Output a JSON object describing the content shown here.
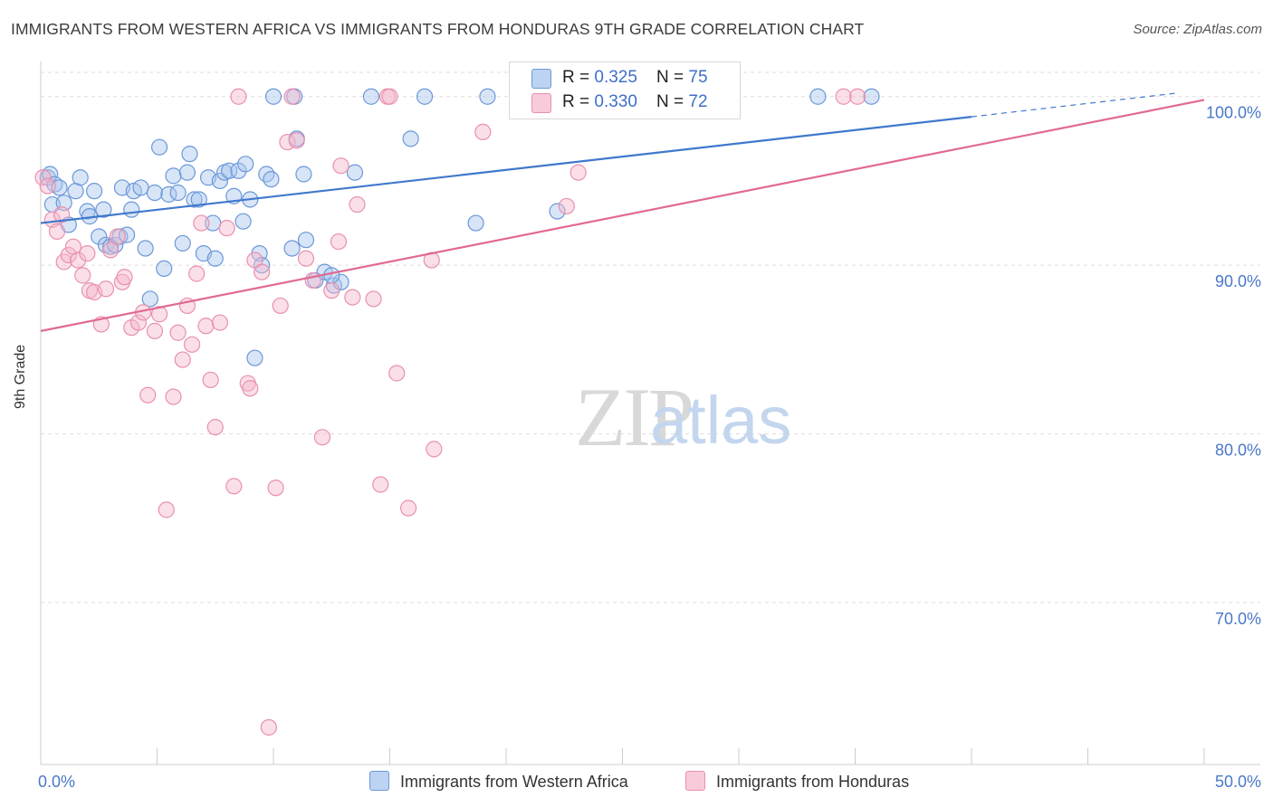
{
  "title": "IMMIGRANTS FROM WESTERN AFRICA VS IMMIGRANTS FROM HONDURAS 9TH GRADE CORRELATION CHART",
  "source": "Source: ZipAtlas.com",
  "watermark": {
    "zip": "ZIP",
    "atlas": "atlas"
  },
  "legend": {
    "r_label": "R = ",
    "n_label": "N = ",
    "series_a": {
      "r": "0.325",
      "n": "75"
    },
    "series_b": {
      "r": "0.330",
      "n": "72"
    }
  },
  "colors": {
    "blue_fill": "#a9c6ee",
    "blue_stroke": "#6b98d8",
    "blue_line": "#3f78cc",
    "pink_fill": "#f5b9cc",
    "pink_stroke": "#e990ae",
    "pink_line": "#e06a92",
    "axis_text": "#4a78c8",
    "grid": "#dddddd"
  },
  "chart_data": {
    "type": "scatter",
    "title": "IMMIGRANTS FROM WESTERN AFRICA VS IMMIGRANTS FROM HONDURAS 9TH GRADE CORRELATION CHART",
    "xlabel": "",
    "ylabel": "9th Grade",
    "xlim": [
      0,
      50
    ],
    "ylim": [
      60.4,
      102.4
    ],
    "x_tick_labels": [
      "0.0%",
      "50.0%"
    ],
    "y_ticks": [
      70,
      80,
      90,
      100
    ],
    "y_tick_labels": [
      "70.0%",
      "80.0%",
      "90.0%",
      "100.0%"
    ],
    "grid": true,
    "legend_placement": "top-center",
    "series": [
      {
        "name": "Immigrants from Western Africa",
        "color": "#a9c6ee",
        "r": 0.325,
        "n": 75,
        "trend": {
          "x0": 0,
          "y0": 92.5,
          "x1": 40,
          "y1": 98.8,
          "dash_to_x": 48.8,
          "dash_to_y": 100.2
        },
        "points": [
          [
            0.3,
            95.2
          ],
          [
            0.4,
            95.4
          ],
          [
            0.6,
            94.8
          ],
          [
            0.8,
            94.6
          ],
          [
            0.5,
            93.6
          ],
          [
            1.0,
            93.7
          ],
          [
            1.2,
            92.4
          ],
          [
            1.5,
            94.4
          ],
          [
            1.7,
            95.2
          ],
          [
            2.0,
            93.2
          ],
          [
            2.1,
            92.9
          ],
          [
            2.3,
            94.4
          ],
          [
            2.5,
            91.7
          ],
          [
            2.7,
            93.3
          ],
          [
            2.8,
            91.2
          ],
          [
            3.0,
            91.1
          ],
          [
            3.2,
            91.2
          ],
          [
            3.4,
            91.7
          ],
          [
            3.5,
            94.6
          ],
          [
            3.7,
            91.8
          ],
          [
            3.9,
            93.3
          ],
          [
            4.0,
            94.4
          ],
          [
            4.3,
            94.6
          ],
          [
            4.5,
            91.0
          ],
          [
            4.7,
            88.0
          ],
          [
            4.9,
            94.3
          ],
          [
            5.1,
            97.0
          ],
          [
            5.3,
            89.8
          ],
          [
            5.5,
            94.2
          ],
          [
            5.7,
            95.3
          ],
          [
            5.9,
            94.3
          ],
          [
            6.1,
            91.3
          ],
          [
            6.3,
            95.5
          ],
          [
            6.4,
            96.6
          ],
          [
            6.6,
            93.9
          ],
          [
            6.8,
            93.9
          ],
          [
            7.0,
            90.7
          ],
          [
            7.2,
            95.2
          ],
          [
            7.4,
            92.5
          ],
          [
            7.5,
            90.4
          ],
          [
            7.7,
            95.0
          ],
          [
            7.9,
            95.5
          ],
          [
            8.1,
            95.6
          ],
          [
            8.3,
            94.1
          ],
          [
            8.5,
            95.6
          ],
          [
            8.7,
            92.6
          ],
          [
            8.8,
            96.0
          ],
          [
            9.0,
            93.9
          ],
          [
            9.2,
            84.5
          ],
          [
            9.4,
            90.7
          ],
          [
            9.5,
            90.0
          ],
          [
            9.7,
            95.4
          ],
          [
            9.9,
            95.1
          ],
          [
            10.0,
            100.0
          ],
          [
            10.9,
            100.0
          ],
          [
            10.8,
            91.0
          ],
          [
            11.0,
            97.5
          ],
          [
            11.3,
            95.4
          ],
          [
            11.4,
            91.5
          ],
          [
            11.8,
            89.1
          ],
          [
            12.2,
            89.6
          ],
          [
            12.6,
            88.8
          ],
          [
            12.9,
            89.0
          ],
          [
            13.5,
            95.5
          ],
          [
            14.2,
            100.0
          ],
          [
            15.9,
            97.5
          ],
          [
            16.5,
            100.0
          ],
          [
            18.7,
            92.5
          ],
          [
            19.2,
            100.0
          ],
          [
            22.2,
            93.2
          ],
          [
            22.8,
            100.0
          ],
          [
            25.2,
            100.0
          ],
          [
            33.4,
            100.0
          ],
          [
            35.7,
            100.0
          ],
          [
            12.5,
            89.4
          ]
        ]
      },
      {
        "name": "Immigrants from Honduras",
        "color": "#f5b9cc",
        "r": 0.33,
        "n": 72,
        "trend": {
          "x0": 0,
          "y0": 86.1,
          "x1": 50,
          "y1": 99.8
        },
        "points": [
          [
            0.1,
            95.2
          ],
          [
            0.3,
            94.7
          ],
          [
            0.5,
            92.7
          ],
          [
            0.7,
            92.0
          ],
          [
            0.9,
            93.0
          ],
          [
            1.0,
            90.2
          ],
          [
            1.2,
            90.6
          ],
          [
            1.4,
            91.1
          ],
          [
            1.6,
            90.3
          ],
          [
            1.8,
            89.4
          ],
          [
            2.0,
            90.7
          ],
          [
            2.1,
            88.5
          ],
          [
            2.3,
            88.4
          ],
          [
            2.6,
            86.5
          ],
          [
            2.8,
            88.6
          ],
          [
            3.0,
            90.9
          ],
          [
            3.3,
            91.7
          ],
          [
            3.5,
            89.0
          ],
          [
            3.6,
            89.3
          ],
          [
            3.9,
            86.3
          ],
          [
            4.2,
            86.6
          ],
          [
            4.4,
            87.2
          ],
          [
            4.6,
            82.3
          ],
          [
            4.9,
            86.1
          ],
          [
            5.1,
            87.1
          ],
          [
            5.4,
            75.5
          ],
          [
            5.7,
            82.2
          ],
          [
            5.9,
            86.0
          ],
          [
            6.1,
            84.4
          ],
          [
            6.3,
            87.6
          ],
          [
            6.5,
            85.3
          ],
          [
            6.7,
            89.5
          ],
          [
            6.9,
            92.5
          ],
          [
            7.1,
            86.4
          ],
          [
            7.3,
            83.2
          ],
          [
            7.5,
            80.4
          ],
          [
            7.7,
            86.6
          ],
          [
            8.0,
            92.2
          ],
          [
            8.3,
            76.9
          ],
          [
            8.5,
            100.0
          ],
          [
            8.9,
            83.0
          ],
          [
            9.0,
            82.7
          ],
          [
            9.2,
            90.3
          ],
          [
            9.5,
            89.6
          ],
          [
            9.8,
            62.6
          ],
          [
            10.1,
            76.8
          ],
          [
            10.3,
            87.6
          ],
          [
            10.6,
            97.3
          ],
          [
            10.8,
            100.0
          ],
          [
            11.0,
            97.4
          ],
          [
            11.4,
            90.4
          ],
          [
            11.7,
            89.1
          ],
          [
            12.1,
            79.8
          ],
          [
            12.5,
            88.5
          ],
          [
            12.8,
            91.4
          ],
          [
            12.9,
            95.9
          ],
          [
            13.4,
            88.1
          ],
          [
            13.6,
            93.6
          ],
          [
            14.3,
            88.0
          ],
          [
            14.6,
            77.0
          ],
          [
            14.9,
            100.0
          ],
          [
            15.0,
            100.0
          ],
          [
            15.3,
            83.6
          ],
          [
            15.8,
            75.6
          ],
          [
            16.8,
            90.3
          ],
          [
            16.9,
            79.1
          ],
          [
            19.0,
            97.9
          ],
          [
            22.6,
            93.5
          ],
          [
            23.1,
            95.5
          ],
          [
            27.4,
            100.0
          ],
          [
            34.5,
            100.0
          ],
          [
            35.1,
            100.0
          ]
        ]
      }
    ]
  }
}
